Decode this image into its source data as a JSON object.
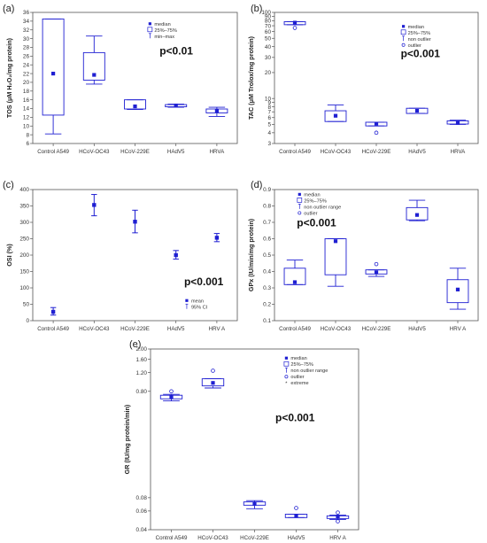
{
  "colors": {
    "mark": "#1f1fd2",
    "frame": "#555555",
    "text": "#222222"
  },
  "categories": [
    "Control A549",
    "HCoV-OC43",
    "HCoV-229E",
    "HAdV5",
    "HRVA"
  ],
  "chart_data": [
    {
      "id": "a",
      "letter": "(a)",
      "type": "boxplot",
      "categories": [
        "Control A549",
        "HCoV-OC43",
        "HCoV-229E",
        "HAdV5",
        "HRVA"
      ],
      "ylabel": "TOS (μM H₂O₂/mg protein)",
      "scale": "linear",
      "ylim": [
        6,
        36
      ],
      "ticks": [
        6,
        8,
        10,
        12,
        14,
        16,
        18,
        20,
        22,
        24,
        26,
        28,
        30,
        32,
        34,
        36
      ],
      "annotation": "p<0.01",
      "legend": [
        "median",
        "25%–75%",
        "min–max"
      ],
      "legend_placement": "top-right",
      "series": [
        {
          "median": 22.0,
          "q1": 12.5,
          "q3": 34.5,
          "wlo": 8.2,
          "whi": 34.5
        },
        {
          "median": 21.7,
          "q1": 20.5,
          "q3": 26.8,
          "wlo": 19.6,
          "whi": 30.6
        },
        {
          "median": 14.5,
          "q1": 13.9,
          "q3": 16.0,
          "wlo": 13.8,
          "whi": 16.0
        },
        {
          "median": 14.7,
          "q1": 14.4,
          "q3": 14.9,
          "wlo": 14.3,
          "whi": 15.0
        },
        {
          "median": 13.5,
          "q1": 13.0,
          "q3": 13.9,
          "wlo": 12.2,
          "whi": 14.3
        }
      ]
    },
    {
      "id": "b",
      "letter": "(b)",
      "type": "boxplot",
      "categories": [
        "Control A549",
        "HCoV-OC43",
        "HCoV-229E",
        "HAdV5",
        "HRVA"
      ],
      "ylabel": "TAC (μM Trolox/mg protein)",
      "scale": "log",
      "ylim": [
        3,
        100
      ],
      "ticks": [
        3,
        4,
        5,
        6,
        7,
        8,
        9,
        10,
        20,
        30,
        40,
        50,
        60,
        70,
        80,
        90,
        100
      ],
      "annotation": "p<0.001",
      "legend": [
        "median",
        "25%–75%",
        "non outlier",
        "outlier"
      ],
      "legend_placement": "top-right",
      "series": [
        {
          "median": 76,
          "q1": 72,
          "q3": 78,
          "wlo": 72,
          "whi": 78,
          "outliers": [
            66
          ]
        },
        {
          "median": 6.3,
          "q1": 5.4,
          "q3": 7.2,
          "wlo": 5.4,
          "whi": 8.4
        },
        {
          "median": 5.1,
          "q1": 4.8,
          "q3": 5.3,
          "wlo": 4.8,
          "whi": 5.3,
          "outliers": [
            4.0
          ]
        },
        {
          "median": 7.2,
          "q1": 6.7,
          "q3": 7.7,
          "wlo": 6.7,
          "whi": 7.7
        },
        {
          "median": 5.2,
          "q1": 5.05,
          "q3": 5.5,
          "wlo": 5.0,
          "whi": 5.6
        }
      ]
    },
    {
      "id": "c",
      "letter": "(c)",
      "type": "meanci",
      "categories": [
        "Control A549",
        "HCoV-OC43",
        "HCoV-229E",
        "HAdV5",
        "HRV A"
      ],
      "ylabel": "OSI (%)",
      "scale": "linear",
      "ylim": [
        0,
        400
      ],
      "ticks": [
        0,
        50,
        100,
        150,
        200,
        250,
        300,
        350,
        400
      ],
      "annotation": "p<0.001",
      "legend": [
        "mean",
        "95% CI"
      ],
      "legend_placement": "bottom-right",
      "series": [
        {
          "mean": 27,
          "lo": 17,
          "hi": 40
        },
        {
          "mean": 353,
          "lo": 320,
          "hi": 385
        },
        {
          "mean": 302,
          "lo": 268,
          "hi": 337
        },
        {
          "mean": 200,
          "lo": 188,
          "hi": 214
        },
        {
          "mean": 253,
          "lo": 241,
          "hi": 266
        }
      ]
    },
    {
      "id": "d",
      "letter": "(d)",
      "type": "boxplot",
      "categories": [
        "Control A549",
        "HCoV-OC43",
        "HCoV-229E",
        "HAdV5",
        "HRV A"
      ],
      "ylabel": "GPx (IU/min/mg protein)",
      "scale": "linear",
      "ylim": [
        0.1,
        0.9
      ],
      "ticks": [
        0.1,
        0.2,
        0.3,
        0.4,
        0.5,
        0.6,
        0.7,
        0.8,
        0.9
      ],
      "ticklabels": [
        "0.1",
        "0.2",
        "0.3",
        "0.4",
        "0.5",
        "0.6",
        "0.7",
        "0.8",
        "0.9"
      ],
      "annotation": "p<0.001",
      "legend": [
        "median",
        "25%–75%",
        "non outlier  range",
        "outlier"
      ],
      "legend_placement": "top-left",
      "series": [
        {
          "median": 0.335,
          "q1": 0.32,
          "q3": 0.42,
          "wlo": 0.32,
          "whi": 0.47
        },
        {
          "median": 0.585,
          "q1": 0.38,
          "q3": 0.6,
          "wlo": 0.31,
          "whi": 0.6
        },
        {
          "median": 0.395,
          "q1": 0.385,
          "q3": 0.41,
          "wlo": 0.37,
          "whi": 0.41,
          "outliers": [
            0.445
          ]
        },
        {
          "median": 0.745,
          "q1": 0.715,
          "q3": 0.79,
          "wlo": 0.71,
          "whi": 0.835
        },
        {
          "median": 0.29,
          "q1": 0.21,
          "q3": 0.35,
          "wlo": 0.17,
          "whi": 0.42
        }
      ]
    },
    {
      "id": "e",
      "letter": "(e)",
      "type": "boxplot",
      "categories": [
        "Control A549",
        "HCoV-OC43",
        "HCoV-229E",
        "HAdV5",
        "HRV A"
      ],
      "ylabel": "GR (IU/mg protein/min)",
      "scale": "log",
      "ylim": [
        0.04,
        2.0
      ],
      "ticks": [
        0.04,
        0.06,
        0.08,
        0.8,
        1.2,
        1.6,
        2.0
      ],
      "ticklabels": [
        "0.04",
        "0.06",
        "0.08",
        "0.80",
        "1.20",
        "1.60",
        "2.00"
      ],
      "annotation": "p<0.001",
      "legend": [
        "median",
        "25%–75%",
        "non outlier range",
        "outlier",
        "extreme"
      ],
      "legend_placement": "top-right",
      "series": [
        {
          "median": 0.71,
          "q1": 0.68,
          "q3": 0.735,
          "wlo": 0.65,
          "whi": 0.75,
          "outliers": [
            0.8
          ]
        },
        {
          "median": 0.96,
          "q1": 0.9,
          "q3": 1.05,
          "wlo": 0.86,
          "whi": 1.05,
          "outliers": [
            1.25
          ]
        },
        {
          "median": 0.07,
          "q1": 0.068,
          "q3": 0.073,
          "wlo": 0.063,
          "whi": 0.075
        },
        {
          "median": 0.054,
          "q1": 0.052,
          "q3": 0.056,
          "wlo": 0.052,
          "whi": 0.056,
          "outliers": [
            0.064
          ]
        },
        {
          "median": 0.053,
          "q1": 0.051,
          "q3": 0.054,
          "wlo": 0.05,
          "whi": 0.055,
          "outliers": [
            0.058,
            0.048
          ]
        }
      ]
    }
  ]
}
